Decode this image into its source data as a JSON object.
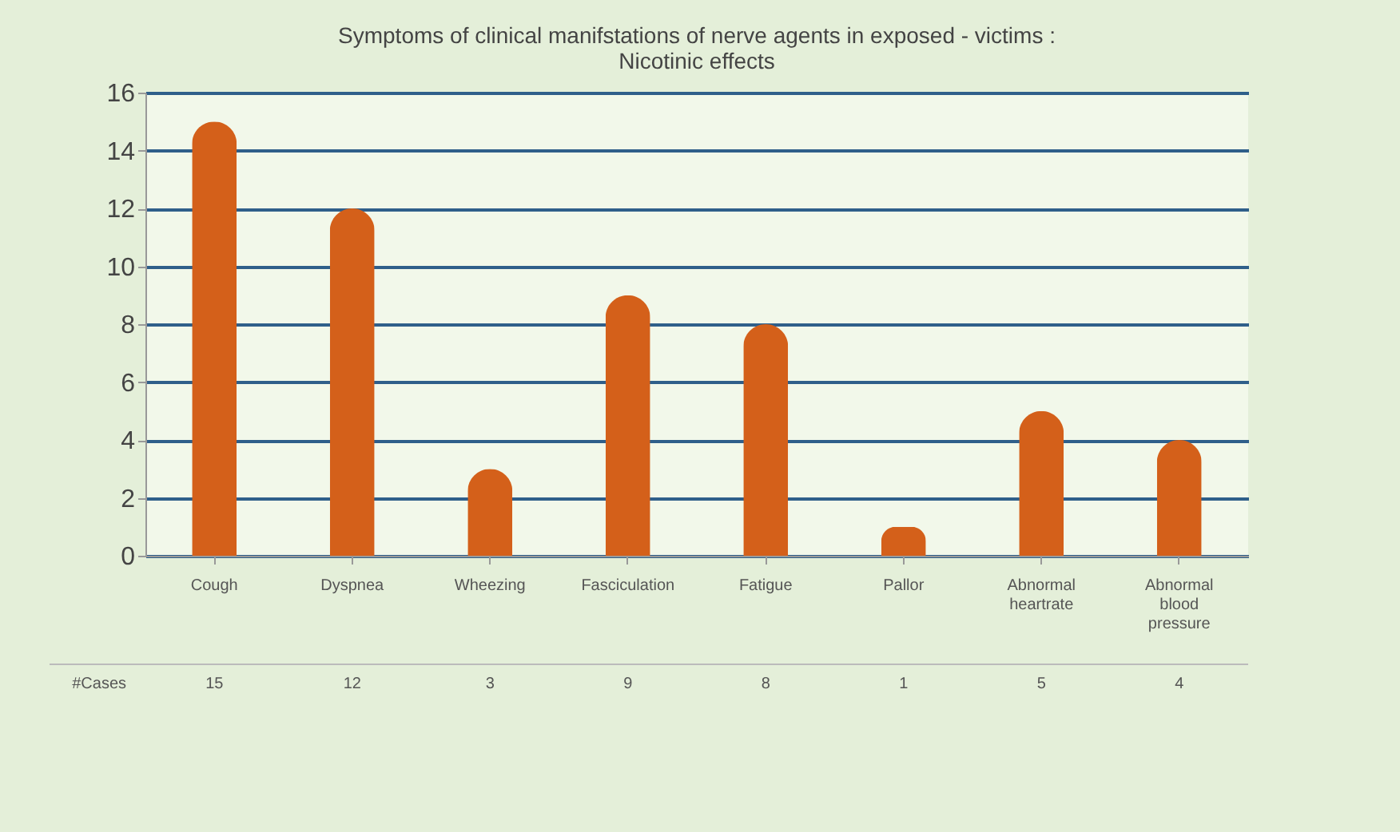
{
  "chart_data": {
    "type": "bar",
    "title": "Symptoms of clinical manifstations of nerve agents in exposed - victims : Nicotinic effects",
    "categories": [
      "Cough",
      "Dyspnea",
      "Wheezing",
      "Fasciculation",
      "Fatigue",
      "Pallor",
      "Abnormal heartrate",
      "Abnormal blood pressure"
    ],
    "series": [
      {
        "name": "#Cases",
        "color": "#d4601a",
        "values": [
          15,
          12,
          3,
          9,
          8,
          1,
          5,
          4
        ]
      }
    ],
    "ylim": [
      0,
      16
    ],
    "yticks": [
      0,
      2,
      4,
      6,
      8,
      10,
      12,
      14,
      16
    ],
    "grid": "y",
    "data_labels": true
  }
}
